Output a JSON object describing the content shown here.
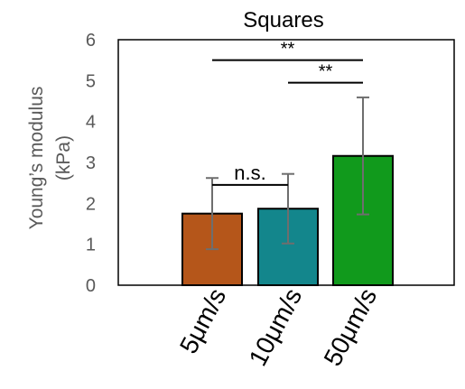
{
  "chart_data": {
    "type": "bar",
    "title": "Squares",
    "xlabel": "",
    "ylabel_lines": [
      "Young’s modulus",
      "(kPa)"
    ],
    "categories": [
      "5μm/s",
      "10μm/s",
      "50μm/s"
    ],
    "values": [
      1.75,
      1.87,
      3.16
    ],
    "errors": [
      0.87,
      0.85,
      1.43
    ],
    "colors": [
      "#b5561a",
      "#13868c",
      "#119a1c"
    ],
    "error_color": "#6e6e6e",
    "ylim": [
      0,
      6
    ],
    "yticks": [
      "0",
      "1",
      "2",
      "3",
      "4",
      "5",
      "6"
    ],
    "grid": false,
    "significance": [
      {
        "from": 0,
        "to": 1,
        "label": "n.s.",
        "y": 2.45
      },
      {
        "from": 1,
        "to": 2,
        "label": "**",
        "y": 4.95
      },
      {
        "from": 0,
        "to": 2,
        "label": "**",
        "y": 5.5
      }
    ]
  }
}
